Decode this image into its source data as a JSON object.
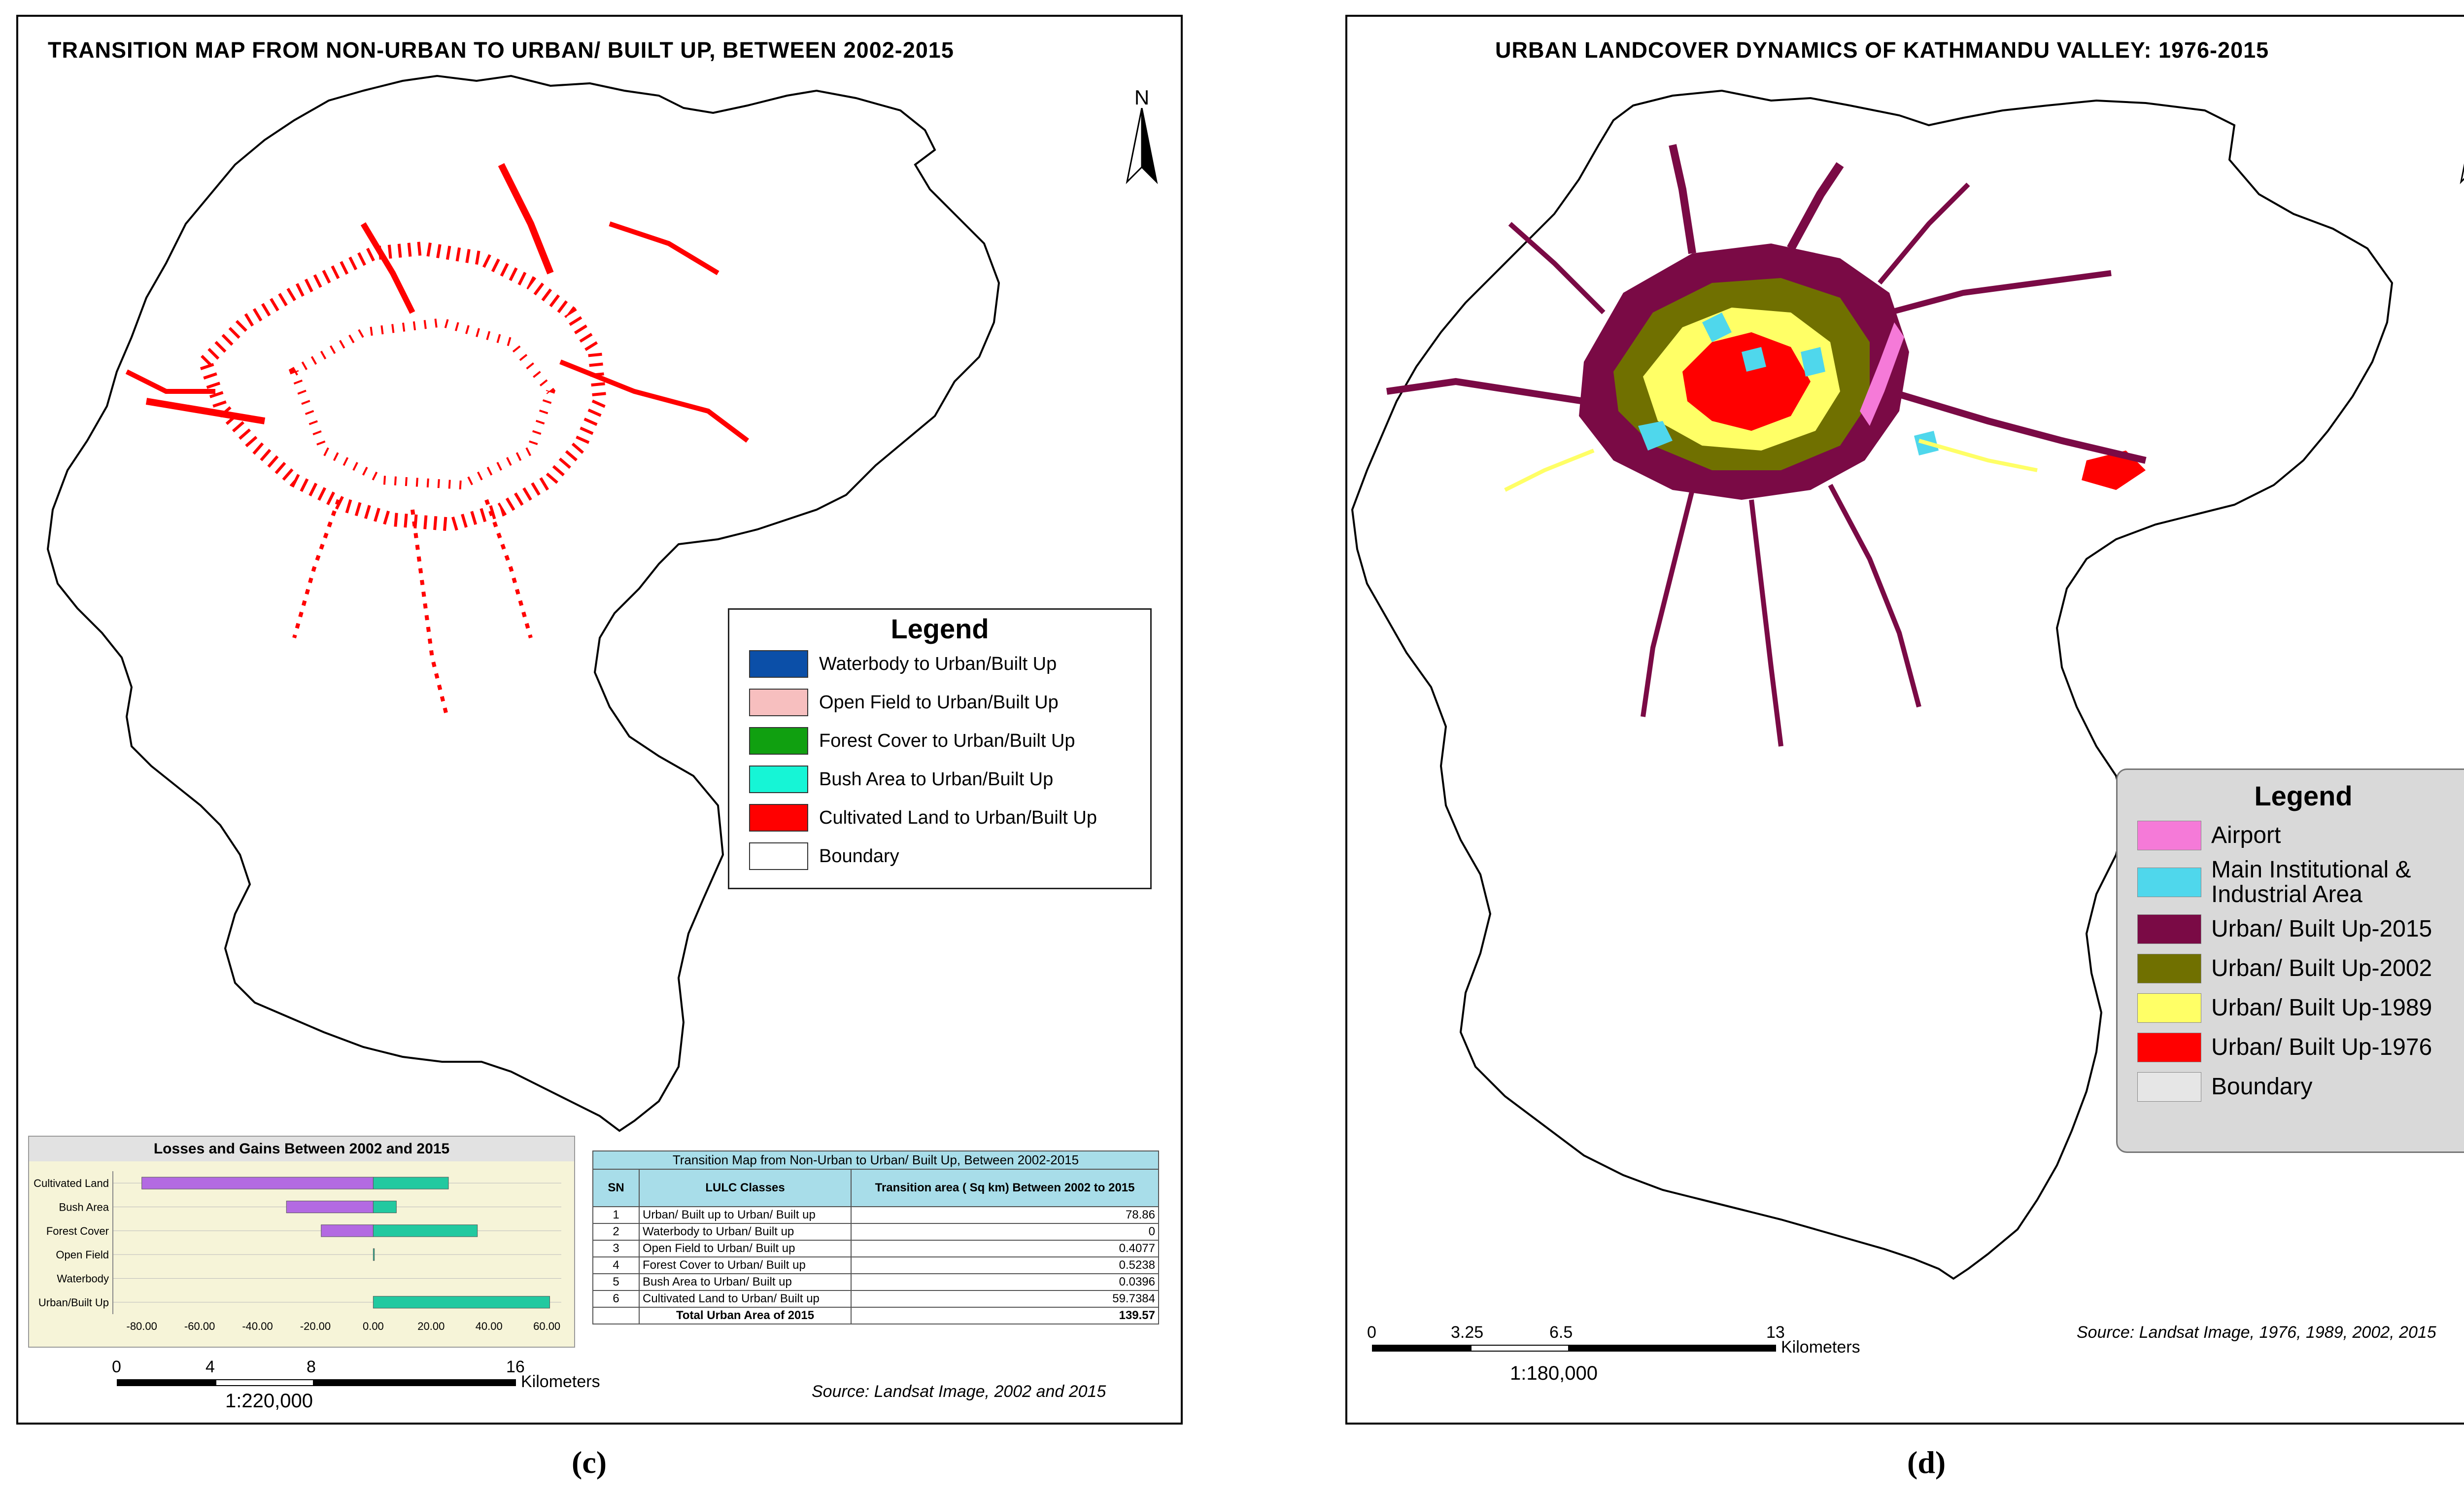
{
  "panel_c": {
    "title": "TRANSITION MAP FROM NON-URBAN TO URBAN/ BUILT UP, BETWEEN  2002-2015",
    "north": "N",
    "legend": {
      "title": "Legend",
      "items": [
        {
          "label": "Waterbody to Urban/Built Up",
          "color": "#0b4fa8"
        },
        {
          "label": "Open Field to Urban/Built Up",
          "color": "#f7bfbf"
        },
        {
          "label": "Forest Cover to Urban/Built Up",
          "color": "#10a010"
        },
        {
          "label": "Bush Area to Urban/Built Up",
          "color": "#16f5d6"
        },
        {
          "label": "Cultivated Land to Urban/Built Up",
          "color": "#ff0000"
        },
        {
          "label": "Boundary",
          "color": "#ffffff"
        }
      ]
    },
    "table": {
      "caption": "Transition Map from Non-Urban to Urban/ Built Up, Between 2002-2015",
      "headers": [
        "SN",
        "LULC Classes",
        "Transition area ( Sq km) Between 2002  to 2015"
      ],
      "rows": [
        {
          "sn": "1",
          "cls": "Urban/ Built up to Urban/ Built up",
          "val": "78.86"
        },
        {
          "sn": "2",
          "cls": "Waterbody to Urban/ Built up",
          "val": "0"
        },
        {
          "sn": "3",
          "cls": "Open Field to Urban/ Built up",
          "val": "0.4077"
        },
        {
          "sn": "4",
          "cls": "Forest Cover to Urban/ Built up",
          "val": "0.5238"
        },
        {
          "sn": "5",
          "cls": "Bush Area to Urban/ Built up",
          "val": "0.0396"
        },
        {
          "sn": "6",
          "cls": "Cultivated Land to Urban/ Built up",
          "val": "59.7384"
        }
      ],
      "total_label": "Total Urban Area of 2015",
      "total_value": "139.57"
    },
    "source": "Source: Landsat Image, 2002 and 2015",
    "scale": {
      "ticks": [
        "0",
        "4",
        "8",
        "16"
      ],
      "unit": "Kilometers",
      "ratio": "1:220,000"
    },
    "label": "(c)"
  },
  "chart_data": {
    "type": "bar",
    "orientation": "horizontal",
    "title": "Losses and Gains Between 2002 and 2015",
    "categories": [
      "Cultivated Land",
      "Bush Area",
      "Forest Cover",
      "Open Field",
      "Waterbody",
      "Urban/Built Up"
    ],
    "series": [
      {
        "name": "Losses",
        "color": "#b36ae2",
        "values": [
          -80,
          -30,
          -18,
          0,
          0,
          0
        ]
      },
      {
        "name": "Gains",
        "color": "#22c9a0",
        "values": [
          26,
          8,
          36,
          0.4,
          0,
          61
        ]
      }
    ],
    "xlim": [
      -90,
      65
    ],
    "xticks": [
      "-80.00",
      "-60.00",
      "-40.00",
      "-20.00",
      "0.00",
      "20.00",
      "40.00",
      "60.00"
    ],
    "xtick_values": [
      -80,
      -60,
      -40,
      -20,
      0,
      20,
      40,
      60
    ],
    "xlabel": "",
    "ylabel": ""
  },
  "panel_d": {
    "title": "URBAN LANDCOVER DYNAMICS OF KATHMANDU VALLEY: 1976-2015",
    "north": "N",
    "legend": {
      "title": "Legend",
      "items": [
        {
          "label": "Airport",
          "color": "#f57ad8"
        },
        {
          "label": "Main Institutional & Industrial Area",
          "color": "#4fd7ec"
        },
        {
          "label": "Urban/ Built Up-2015",
          "color": "#7a0a45"
        },
        {
          "label": "Urban/ Built Up-2002",
          "color": "#707000"
        },
        {
          "label": "Urban/ Built Up-1989",
          "color": "#ffff66"
        },
        {
          "label": "Urban/ Built Up-1976",
          "color": "#ff0000"
        },
        {
          "label": "Boundary",
          "color": "#e6e6e6"
        }
      ]
    },
    "source": "Source: Landsat Image, 1976, 1989, 2002, 2015",
    "scale": {
      "ticks": [
        "0",
        "3.25",
        "6.5",
        "13"
      ],
      "unit": "Kilometers",
      "ratio": "1:180,000"
    },
    "label": "(d)"
  }
}
